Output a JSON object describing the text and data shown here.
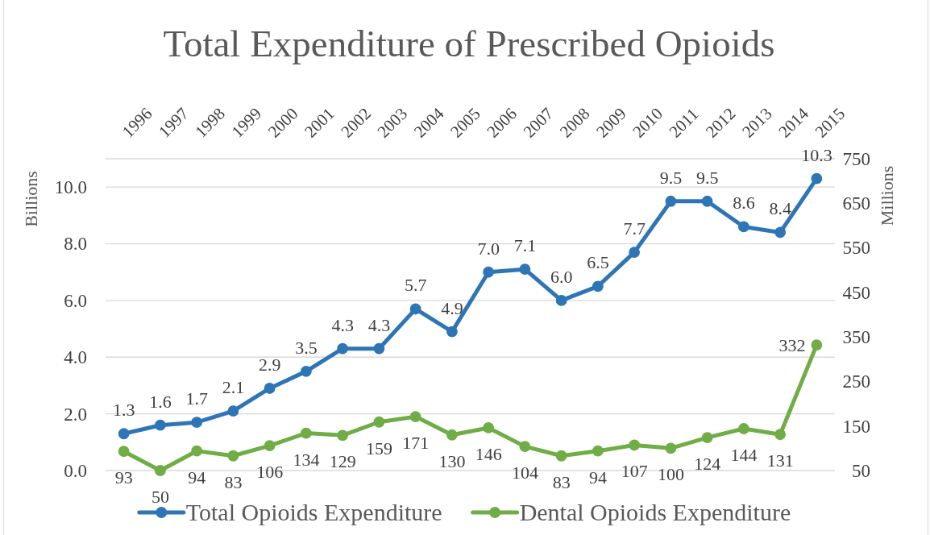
{
  "chart_data": {
    "type": "line",
    "title": "Total Expenditure of Prescribed Opioids",
    "ylabel": "Billions",
    "y2label": "Millions",
    "categories": [
      "1996",
      "1997",
      "1998",
      "1999",
      "2000",
      "2001",
      "2002",
      "2003",
      "2004",
      "2005",
      "2006",
      "2007",
      "2008",
      "2009",
      "2010",
      "2011",
      "2012",
      "2013",
      "2014",
      "2015"
    ],
    "series": [
      {
        "name": "Total Opioids Expenditure",
        "color": "#2e75b6",
        "values": [
          1.3,
          1.6,
          1.7,
          2.1,
          2.9,
          3.5,
          4.3,
          4.3,
          5.7,
          4.9,
          7.0,
          7.1,
          6.0,
          6.5,
          7.7,
          9.5,
          9.5,
          8.6,
          8.4,
          10.3
        ],
        "value_labels": [
          "1.3",
          "1.6",
          "1.7",
          "2.1",
          "2.9",
          "3.5",
          "4.3",
          "4.3",
          "5.7",
          "4.9",
          "7.0",
          "7.1",
          "6.0",
          "6.5",
          "7.7",
          "9.5",
          "9.5",
          "8.6",
          "8.4",
          "10.3"
        ]
      },
      {
        "name": "Dental Opioids Expenditure",
        "color": "#70ad47",
        "axis": "y2",
        "values": [
          93,
          50,
          94,
          83,
          106,
          134,
          129,
          159,
          171,
          130,
          146,
          104,
          83,
          94,
          107,
          100,
          124,
          144,
          131,
          332
        ],
        "value_labels": [
          "93",
          "50",
          "94",
          "83",
          "106",
          "134",
          "129",
          "159",
          "171",
          "130",
          "146",
          "104",
          "83",
          "94",
          "107",
          "100",
          "124",
          "144",
          "131",
          "332"
        ]
      }
    ],
    "ylim": [
      0,
      11
    ],
    "yticks": [
      {
        "value": 0,
        "label": "0.0"
      },
      {
        "value": 2,
        "label": "2.0"
      },
      {
        "value": 4,
        "label": "4.0"
      },
      {
        "value": 6,
        "label": "6.0"
      },
      {
        "value": 8,
        "label": "8.0"
      },
      {
        "value": 10,
        "label": "10.0"
      },
      {
        "value": 11,
        "label": null
      }
    ],
    "y2lim": [
      50,
      750
    ],
    "y2ticks": [
      50,
      150,
      250,
      350,
      450,
      550,
      650,
      750
    ],
    "grid": "y",
    "legend": "bottom",
    "marker": "circle",
    "line_style": "solid"
  }
}
